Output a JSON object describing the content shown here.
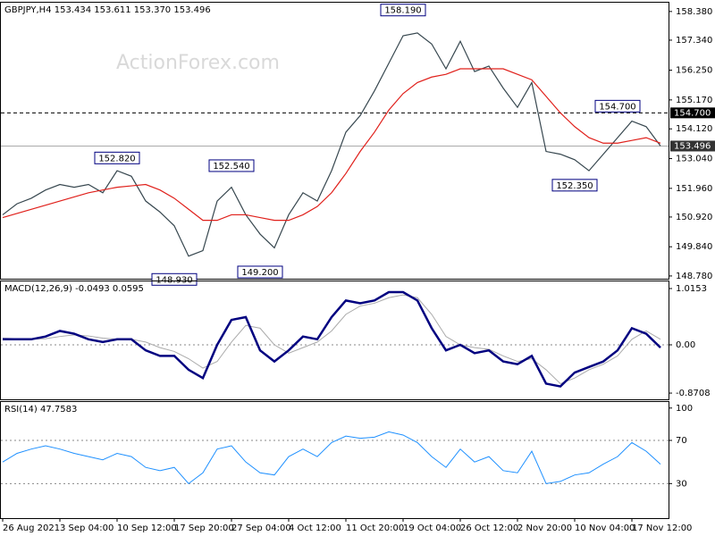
{
  "chart_data": [
    {
      "type": "line",
      "title": "GBPJPY,H4 153.434 153.611 153.370 153.496",
      "watermark": "ActionForex.com",
      "ylim": [
        148.68,
        158.7
      ],
      "yticks": [
        {
          "value": 158.38,
          "label": "158.380"
        },
        {
          "value": 157.34,
          "label": "157.340"
        },
        {
          "value": 156.25,
          "label": "156.250"
        },
        {
          "value": 155.17,
          "label": "155.170"
        },
        {
          "value": 154.12,
          "label": "154.120"
        },
        {
          "value": 153.04,
          "label": "153.040"
        },
        {
          "value": 151.96,
          "label": "151.960"
        },
        {
          "value": 150.92,
          "label": "150.920"
        },
        {
          "value": 149.84,
          "label": "149.840"
        },
        {
          "value": 148.78,
          "label": "148.780"
        }
      ],
      "hlines": [
        {
          "value": 154.7,
          "label": "154.700",
          "style": "dashed"
        },
        {
          "value": 153.496,
          "label": "153.496",
          "style": "solid"
        }
      ],
      "series": [
        {
          "color": "#37474f",
          "width": 1.2,
          "values": [
            151.0,
            151.4,
            151.6,
            151.9,
            152.1,
            152.0,
            152.1,
            151.8,
            152.6,
            152.4,
            151.5,
            151.1,
            150.6,
            149.5,
            149.7,
            151.5,
            152.0,
            151.0,
            150.3,
            149.8,
            151.0,
            151.8,
            151.5,
            152.6,
            154.0,
            154.6,
            155.5,
            156.5,
            157.5,
            157.6,
            157.2,
            156.3,
            157.3,
            156.2,
            156.4,
            155.6,
            154.9,
            155.8,
            153.3,
            153.2,
            153.0,
            152.6,
            153.2,
            153.8,
            154.4,
            154.2,
            153.5
          ]
        },
        {
          "color": "#e0201b",
          "width": 1.2,
          "values": [
            150.9,
            151.05,
            151.2,
            151.35,
            151.5,
            151.65,
            151.8,
            151.9,
            152.0,
            152.05,
            152.1,
            151.9,
            151.6,
            151.2,
            150.8,
            150.8,
            151.0,
            151.0,
            150.9,
            150.8,
            150.8,
            151.0,
            151.3,
            151.8,
            152.5,
            153.3,
            154.0,
            154.8,
            155.4,
            155.8,
            156.0,
            156.1,
            156.3,
            156.3,
            156.3,
            156.3,
            156.1,
            155.9,
            155.3,
            154.7,
            154.2,
            153.8,
            153.6,
            153.6,
            153.7,
            153.8,
            153.6
          ]
        }
      ],
      "annotations": [
        {
          "index": 8,
          "value": 152.82,
          "label": "152.820",
          "side": "above"
        },
        {
          "index": 16,
          "value": 152.54,
          "label": "152.540",
          "side": "above"
        },
        {
          "index": 12,
          "value": 148.93,
          "label": "148.930",
          "side": "below"
        },
        {
          "index": 18,
          "value": 149.2,
          "label": "149.200",
          "side": "below"
        },
        {
          "index": 28,
          "value": 158.19,
          "label": "158.190",
          "side": "above"
        },
        {
          "index": 43,
          "value": 154.7,
          "label": "154.700",
          "side": "above"
        },
        {
          "index": 40,
          "value": 152.35,
          "label": "152.350",
          "side": "below"
        }
      ]
    },
    {
      "type": "line",
      "title": "MACD(12,26,9) -0.0493 0.0595",
      "ylim": [
        -0.983,
        1.144
      ],
      "yticks": [
        1.0153,
        {
          "value": 0,
          "label": "0.00"
        },
        -0.8708
      ],
      "levels": [
        0
      ],
      "series": [
        {
          "color": "#aaaaaa",
          "width": 1,
          "values": [
            0.12,
            0.11,
            0.1,
            0.11,
            0.15,
            0.18,
            0.16,
            0.12,
            0.1,
            0.1,
            0.05,
            -0.05,
            -0.12,
            -0.25,
            -0.42,
            -0.3,
            0.05,
            0.35,
            0.3,
            0.0,
            -0.15,
            -0.05,
            0.05,
            0.25,
            0.55,
            0.7,
            0.75,
            0.85,
            0.9,
            0.85,
            0.55,
            0.15,
            0.0,
            -0.05,
            -0.08,
            -0.2,
            -0.3,
            -0.25,
            -0.45,
            -0.7,
            -0.6,
            -0.45,
            -0.35,
            -0.2,
            0.1,
            0.25,
            0.1
          ]
        },
        {
          "color": "#000080",
          "width": 2.5,
          "values": [
            0.1,
            0.1,
            0.1,
            0.15,
            0.25,
            0.2,
            0.1,
            0.05,
            0.1,
            0.1,
            -0.1,
            -0.2,
            -0.2,
            -0.45,
            -0.6,
            0.0,
            0.45,
            0.5,
            -0.1,
            -0.3,
            -0.1,
            0.15,
            0.1,
            0.5,
            0.8,
            0.75,
            0.8,
            0.95,
            0.95,
            0.8,
            0.3,
            -0.1,
            0.0,
            -0.15,
            -0.1,
            -0.3,
            -0.35,
            -0.2,
            -0.7,
            -0.75,
            -0.5,
            -0.4,
            -0.3,
            -0.1,
            0.3,
            0.2,
            -0.05
          ]
        }
      ]
    },
    {
      "type": "line",
      "title": "RSI(14) 47.7583",
      "ylim": [
        -2,
        105.6
      ],
      "yticks": [
        100,
        70,
        30
      ],
      "levels": [
        70,
        30
      ],
      "categories": [
        "26 Aug 2021",
        null,
        null,
        null,
        "3 Sep 04:00",
        null,
        null,
        null,
        "10 Sep 12:00",
        null,
        null,
        null,
        "17 Sep 20:00",
        null,
        null,
        null,
        "27 Sep 04:00",
        null,
        null,
        null,
        "4 Oct 12:00",
        null,
        null,
        null,
        "11 Oct 20:00",
        null,
        null,
        null,
        "19 Oct 04:00",
        null,
        null,
        null,
        "26 Oct 12:00",
        null,
        null,
        null,
        "2 Nov 20:00",
        null,
        null,
        null,
        "10 Nov 04:00",
        null,
        null,
        null,
        "17 Nov 12:00",
        null,
        null
      ],
      "series": [
        {
          "color": "#1e90ff",
          "width": 1,
          "values": [
            50,
            58,
            62,
            65,
            62,
            58,
            55,
            52,
            58,
            55,
            45,
            42,
            45,
            30,
            40,
            62,
            65,
            50,
            40,
            38,
            55,
            62,
            55,
            68,
            74,
            72,
            73,
            78,
            75,
            68,
            55,
            45,
            62,
            50,
            55,
            42,
            40,
            60,
            30,
            32,
            38,
            40,
            48,
            55,
            68,
            60,
            48
          ]
        }
      ]
    }
  ]
}
